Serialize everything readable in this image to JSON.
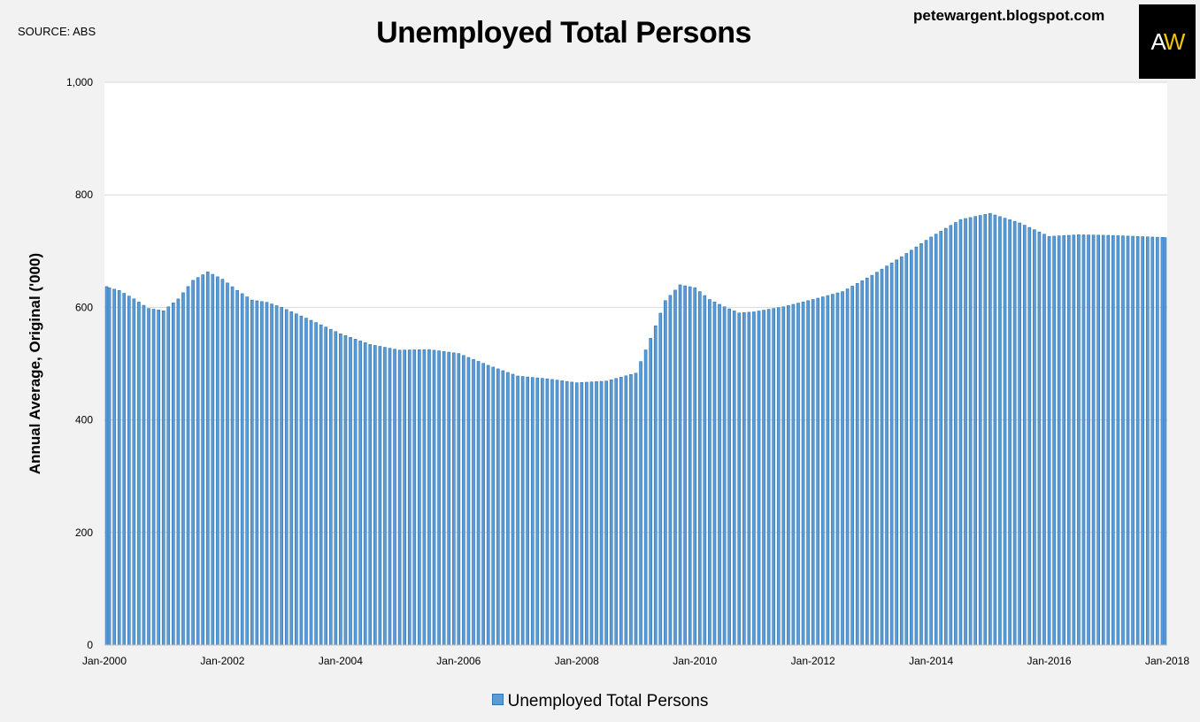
{
  "header": {
    "source": "SOURCE: ABS",
    "blog": "petewargent.blogspot.com",
    "logo_text": "AW"
  },
  "chart_data": {
    "type": "bar",
    "title": "Unemployed Total Persons",
    "xlabel": "",
    "ylabel": "Annual Average, Original ('000)",
    "ylim": [
      0,
      1000
    ],
    "yticks": [
      0,
      200,
      400,
      600,
      800,
      1000
    ],
    "ytick_labels": [
      "0",
      "200",
      "400",
      "600",
      "800",
      "1,000"
    ],
    "xtick_labels": [
      "Jan-2000",
      "Jan-2002",
      "Jan-2004",
      "Jan-2006",
      "Jan-2008",
      "Jan-2010",
      "Jan-2012",
      "Jan-2014",
      "Jan-2016",
      "Jan-2018"
    ],
    "x_start": "Jan-2000",
    "x_end": "Jan-2018",
    "frequency": "monthly",
    "grid": true,
    "legend": [
      "Unemployed Total Persons"
    ],
    "legend_position": "bottom",
    "bar_color": "#5b9bd5",
    "bar_edge_color": "#2e75b6",
    "anchor_months": [
      0,
      3,
      6,
      9,
      12,
      15,
      18,
      21,
      24,
      27,
      30,
      33,
      36,
      42,
      48,
      54,
      60,
      66,
      72,
      78,
      84,
      90,
      96,
      102,
      108,
      111,
      114,
      117,
      120,
      123,
      126,
      129,
      132,
      138,
      144,
      150,
      156,
      162,
      168,
      174,
      180,
      186,
      192,
      198,
      204,
      210,
      216
    ],
    "anchor_values": [
      637,
      630,
      615,
      598,
      594,
      615,
      648,
      663,
      650,
      630,
      613,
      609,
      600,
      577,
      553,
      534,
      524,
      525,
      518,
      497,
      478,
      473,
      466,
      469,
      483,
      545,
      612,
      640,
      635,
      614,
      601,
      590,
      592,
      601,
      614,
      628,
      657,
      690,
      725,
      756,
      767,
      750,
      726,
      729,
      728,
      726,
      724
    ]
  }
}
